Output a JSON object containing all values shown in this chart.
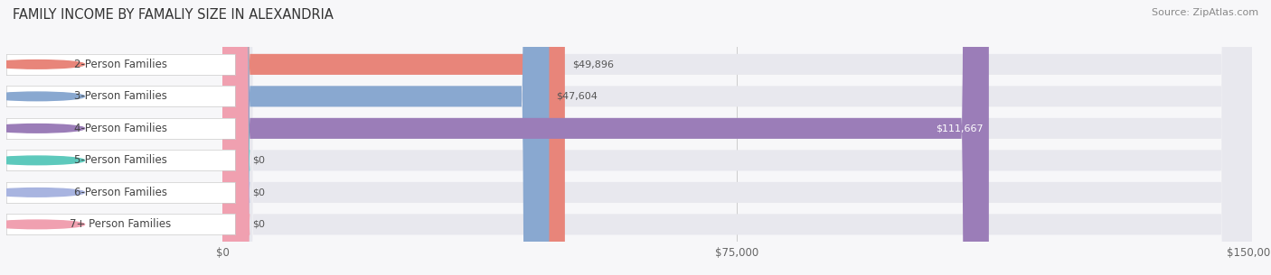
{
  "title": "FAMILY INCOME BY FAMALIY SIZE IN ALEXANDRIA",
  "source": "Source: ZipAtlas.com",
  "categories": [
    "2-Person Families",
    "3-Person Families",
    "4-Person Families",
    "5-Person Families",
    "6-Person Families",
    "7+ Person Families"
  ],
  "values": [
    49896,
    47604,
    111667,
    0,
    0,
    0
  ],
  "bar_colors": [
    "#e8857a",
    "#89a8d0",
    "#9b7db8",
    "#5dc9bc",
    "#a8b4e0",
    "#f0a0b0"
  ],
  "max_value": 150000,
  "x_ticks": [
    0,
    75000,
    150000
  ],
  "x_tick_labels": [
    "$0",
    "$75,000",
    "$150,000"
  ],
  "background_color": "#f7f7f9",
  "bar_bg_color": "#e8e8ee",
  "title_fontsize": 10.5,
  "source_fontsize": 8,
  "label_fontsize": 8.5,
  "value_fontsize": 8,
  "bar_height": 0.65,
  "value_color_inside": "#ffffff",
  "value_color_outside": "#555555"
}
